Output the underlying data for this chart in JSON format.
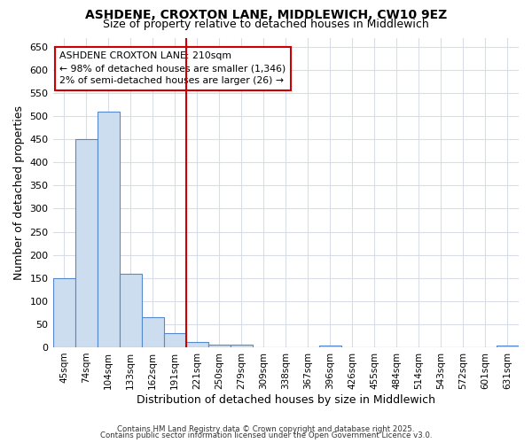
{
  "title_line1": "ASHDENE, CROXTON LANE, MIDDLEWICH, CW10 9EZ",
  "title_line2": "Size of property relative to detached houses in Middlewich",
  "xlabel": "Distribution of detached houses by size in Middlewich",
  "ylabel": "Number of detached properties",
  "bar_labels": [
    "45sqm",
    "74sqm",
    "104sqm",
    "133sqm",
    "162sqm",
    "191sqm",
    "221sqm",
    "250sqm",
    "279sqm",
    "309sqm",
    "338sqm",
    "367sqm",
    "396sqm",
    "426sqm",
    "455sqm",
    "484sqm",
    "514sqm",
    "543sqm",
    "572sqm",
    "601sqm",
    "631sqm"
  ],
  "bar_values": [
    150,
    450,
    510,
    160,
    65,
    30,
    12,
    6,
    5,
    0,
    0,
    0,
    3,
    0,
    0,
    0,
    0,
    0,
    0,
    0,
    3
  ],
  "bar_color": "#ccddf0",
  "bar_edge_color": "#5588cc",
  "vline_x_idx": 6,
  "vline_color": "#cc0000",
  "annotation_title": "ASHDENE CROXTON LANE: 210sqm",
  "annotation_line1": "← 98% of detached houses are smaller (1,346)",
  "annotation_line2": "2% of semi-detached houses are larger (26) →",
  "annotation_box_color": "#cc0000",
  "ylim": [
    0,
    670
  ],
  "yticks": [
    0,
    50,
    100,
    150,
    200,
    250,
    300,
    350,
    400,
    450,
    500,
    550,
    600,
    650
  ],
  "background_color": "#ffffff",
  "plot_background": "#ffffff",
  "grid_color": "#d8dde8",
  "footer_line1": "Contains HM Land Registry data © Crown copyright and database right 2025.",
  "footer_line2": "Contains public sector information licensed under the Open Government Licence v3.0."
}
